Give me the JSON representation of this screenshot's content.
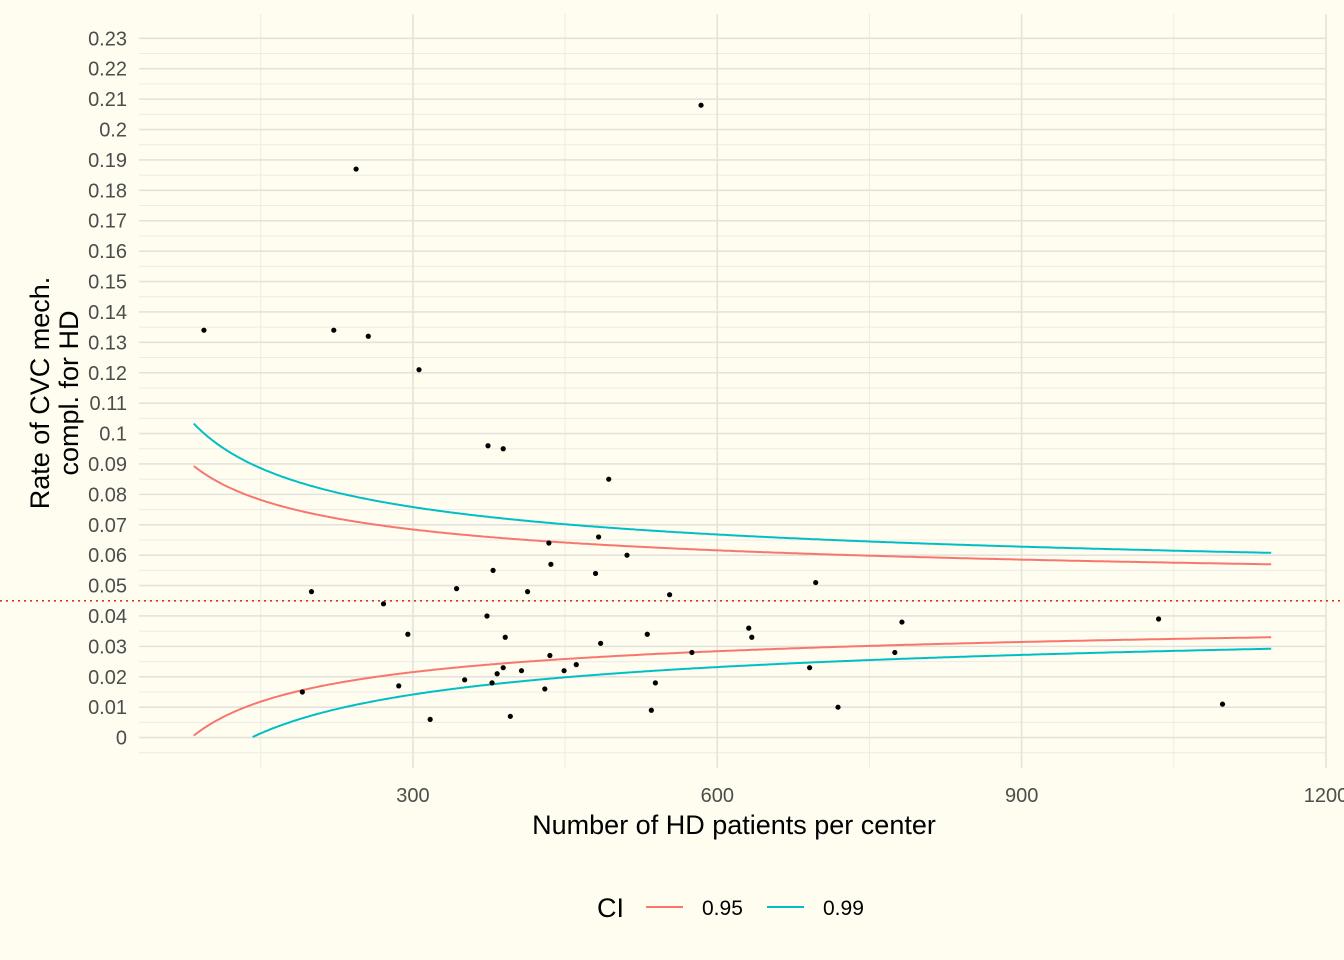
{
  "chart_data": {
    "type": "scatter",
    "xlabel": "Number of HD patients per center",
    "ylabel_lines": [
      "Rate of CVC mech.",
      "compl. for HD"
    ],
    "xlim": [
      30,
      1200
    ],
    "ylim": [
      -0.01,
      0.238
    ],
    "x_ticks": [
      300,
      600,
      900,
      1200
    ],
    "x_tick_labels": [
      "300",
      "600",
      "900",
      "1200"
    ],
    "y_ticks": [
      0,
      0.01,
      0.02,
      0.03,
      0.04,
      0.05,
      0.06,
      0.07,
      0.08,
      0.09,
      0.1,
      0.11,
      0.12,
      0.13,
      0.14,
      0.15,
      0.16,
      0.17,
      0.18,
      0.19,
      0.2,
      0.21,
      0.22,
      0.23
    ],
    "y_tick_labels": [
      "0",
      "0.01",
      "0.02",
      "0.03",
      "0.04",
      "0.05",
      "0.06",
      "0.07",
      "0.08",
      "0.09",
      "0.1",
      "0.11",
      "0.12",
      "0.13",
      "0.14",
      "0.15",
      "0.16",
      "0.17",
      "0.18",
      "0.19",
      "0.2",
      "0.21",
      "0.22",
      "0.23"
    ],
    "grid": true,
    "reference_line": {
      "y": 0.045,
      "style": "dotted",
      "color": "#d7372a"
    },
    "legend": {
      "title": "CI",
      "position": "bottom",
      "entries": [
        {
          "label": "0.95",
          "color": "#f8766d"
        },
        {
          "label": "0.99",
          "color": "#00bfc4"
        }
      ]
    },
    "funnel": {
      "p0": 0.045,
      "x_range": [
        84,
        1147
      ],
      "series": [
        {
          "name": "0.95",
          "z": 1.96,
          "color": "#f8766d"
        },
        {
          "name": "0.99",
          "z": 2.576,
          "color": "#00bfc4"
        }
      ]
    },
    "points": [
      [
        94,
        0.134
      ],
      [
        191,
        0.015
      ],
      [
        200,
        0.048
      ],
      [
        222,
        0.134
      ],
      [
        244,
        0.187
      ],
      [
        256,
        0.132
      ],
      [
        271,
        0.044
      ],
      [
        286,
        0.017
      ],
      [
        295,
        0.034
      ],
      [
        306,
        0.121
      ],
      [
        317,
        0.006
      ],
      [
        343,
        0.049
      ],
      [
        351,
        0.019
      ],
      [
        373,
        0.04
      ],
      [
        374,
        0.096
      ],
      [
        378,
        0.018
      ],
      [
        379,
        0.055
      ],
      [
        383,
        0.021
      ],
      [
        389,
        0.023
      ],
      [
        389,
        0.095
      ],
      [
        391,
        0.033
      ],
      [
        396,
        0.007
      ],
      [
        407,
        0.022
      ],
      [
        413,
        0.048
      ],
      [
        430,
        0.016
      ],
      [
        434,
        0.064
      ],
      [
        435,
        0.027
      ],
      [
        436,
        0.057
      ],
      [
        449,
        0.022
      ],
      [
        461,
        0.024
      ],
      [
        480,
        0.054
      ],
      [
        483,
        0.066
      ],
      [
        485,
        0.031
      ],
      [
        493,
        0.085
      ],
      [
        511,
        0.06
      ],
      [
        531,
        0.034
      ],
      [
        535,
        0.009
      ],
      [
        539,
        0.018
      ],
      [
        553,
        0.047
      ],
      [
        575,
        0.028
      ],
      [
        584,
        0.208
      ],
      [
        631,
        0.036
      ],
      [
        634,
        0.033
      ],
      [
        691,
        0.023
      ],
      [
        697,
        0.051
      ],
      [
        719,
        0.01
      ],
      [
        775,
        0.028
      ],
      [
        782,
        0.038
      ],
      [
        1035,
        0.039
      ],
      [
        1098,
        0.011
      ]
    ]
  }
}
